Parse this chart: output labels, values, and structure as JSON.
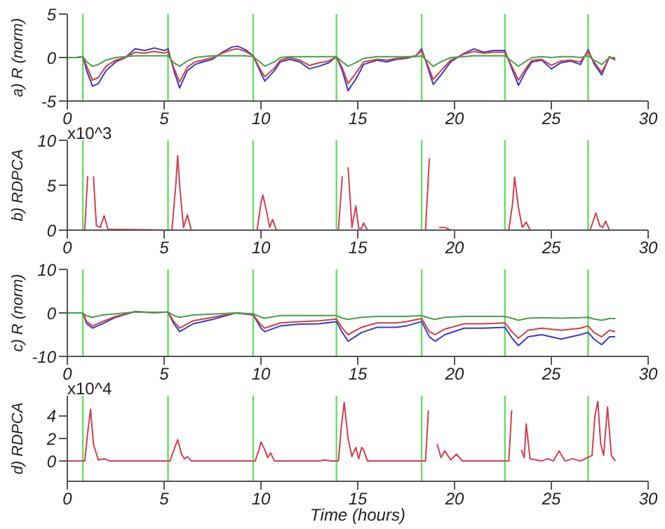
{
  "chart_data": [
    {
      "type": "line",
      "ylabel": "a) R (norm)",
      "xlim": [
        0,
        30
      ],
      "xticks": [
        0,
        5,
        10,
        15,
        20,
        25,
        30
      ],
      "ylim": [
        -5,
        5
      ],
      "yticks": [
        -5,
        0,
        5
      ],
      "x": [
        0,
        0.5,
        0.8,
        1.0,
        1.3,
        1.6,
        2.0,
        2.5,
        3,
        3.5,
        4,
        4.5,
        5,
        5.2,
        5.5,
        5.8,
        6.2,
        6.6,
        7,
        7.5,
        8,
        8.5,
        8.8,
        9.2,
        9.6,
        10,
        10.2,
        10.7,
        11,
        11.5,
        12,
        12.5,
        13,
        13.5,
        13.9,
        14.2,
        14.5,
        14.9,
        15.3,
        16,
        16.5,
        17,
        17.5,
        18,
        18.3,
        18.6,
        18.9,
        19.3,
        19.8,
        20.5,
        21,
        21.5,
        22,
        22.6,
        23,
        23.3,
        23.7,
        24,
        24.5,
        25,
        25.5,
        26,
        26.5,
        26.9,
        27.2,
        27.6,
        28,
        28.3
      ],
      "series": [
        {
          "color": "#3a3ad0",
          "values": [
            0,
            0,
            0.1,
            -1.5,
            -3.3,
            -3.0,
            -1.5,
            -0.5,
            0,
            1,
            0.8,
            1.1,
            0.8,
            1.0,
            -1.5,
            -3.5,
            -1.5,
            -0.8,
            -0.5,
            -0.2,
            0.6,
            1.2,
            1.3,
            0.9,
            0.2,
            -1.8,
            -2.7,
            -1.5,
            -0.5,
            -0.2,
            -0.5,
            -1.3,
            -1.0,
            -0.6,
            0.1,
            -1.5,
            -3.8,
            -2.5,
            -0.8,
            -0.3,
            -0.5,
            -0.2,
            -0.1,
            0.2,
            1.0,
            -1.0,
            -3.1,
            -2.0,
            -0.5,
            0.5,
            1.0,
            0.6,
            0.8,
            0.8,
            -1.5,
            -3.2,
            -1.5,
            -0.5,
            -0.3,
            -1.3,
            -0.6,
            -0.4,
            -0.8,
            0.9,
            -0.7,
            -2.0,
            0.1,
            -0.3
          ]
        },
        {
          "color": "#d04040",
          "values": [
            0,
            0,
            0.1,
            -1.0,
            -2.6,
            -2.3,
            -1.0,
            -0.3,
            0,
            0.6,
            0.5,
            0.7,
            0.5,
            0.7,
            -1.2,
            -2.8,
            -1.1,
            -0.5,
            -0.3,
            0,
            0.5,
            0.9,
            1.0,
            0.7,
            0.2,
            -1.5,
            -2.2,
            -1.2,
            -0.3,
            0,
            -0.3,
            -0.9,
            -0.6,
            -0.4,
            0.1,
            -1.2,
            -3.0,
            -1.8,
            -0.5,
            -0.2,
            -0.3,
            -0.1,
            0,
            0.2,
            0.8,
            -0.8,
            -2.5,
            -1.5,
            -0.3,
            0.4,
            0.7,
            0.5,
            0.6,
            0.6,
            -1.2,
            -2.6,
            -1.2,
            -0.3,
            -0.2,
            -0.9,
            -0.4,
            -0.3,
            -0.5,
            0.7,
            -0.5,
            -1.7,
            0,
            -0.2
          ]
        },
        {
          "color": "#48a048",
          "values": [
            0,
            0,
            0.1,
            -0.5,
            -1.0,
            -0.8,
            -0.3,
            0,
            0.1,
            0.2,
            0.2,
            0.2,
            0.2,
            0.2,
            -0.6,
            -1.0,
            -0.4,
            0,
            0.1,
            0.2,
            0.2,
            0.2,
            0.2,
            0.2,
            0.1,
            -0.6,
            -1.0,
            -0.5,
            0,
            0.1,
            0.1,
            0.1,
            0.1,
            0.1,
            0.1,
            -0.5,
            -1.0,
            -0.6,
            -0.1,
            0.1,
            0.1,
            0.1,
            0.1,
            0.1,
            0.2,
            -0.4,
            -1.0,
            -0.5,
            0,
            0.1,
            0.2,
            0.2,
            0.2,
            0.2,
            -0.5,
            -1.0,
            -0.4,
            0,
            0.1,
            0,
            0.1,
            0.1,
            0,
            0.2,
            -0.3,
            -0.8,
            0,
            0
          ]
        }
      ],
      "ref_lines": [
        {
          "axis": "x",
          "value": 0.8,
          "color": "#66dd66"
        },
        {
          "axis": "x",
          "value": 5.2,
          "color": "#66dd66"
        },
        {
          "axis": "x",
          "value": 9.6,
          "color": "#66dd66"
        },
        {
          "axis": "x",
          "value": 13.9,
          "color": "#66dd66"
        },
        {
          "axis": "x",
          "value": 18.3,
          "color": "#66dd66"
        },
        {
          "axis": "x",
          "value": 22.6,
          "color": "#66dd66"
        },
        {
          "axis": "x",
          "value": 26.9,
          "color": "#66dd66"
        }
      ]
    },
    {
      "type": "line",
      "ylabel": "b) RDPCA",
      "annotations": [
        "x10^3"
      ],
      "xlim": [
        0,
        30
      ],
      "xticks": [
        0,
        5,
        10,
        15,
        20,
        25,
        30
      ],
      "ylim": [
        0,
        10
      ],
      "yticks": [
        0,
        5,
        10
      ],
      "x": [
        0,
        0.9,
        1.05,
        1.2,
        1.35,
        1.5,
        1.7,
        1.9,
        2.1,
        5.4,
        5.6,
        5.7,
        5.8,
        6.0,
        6.2,
        6.4,
        9.8,
        10.0,
        10.1,
        10.3,
        10.45,
        10.6,
        10.8,
        14.0,
        14.2,
        14.3,
        14.5,
        14.7,
        14.9,
        15.05,
        15.2,
        15.3,
        15.5,
        18.5,
        18.7,
        18.8,
        19.0,
        19.2,
        19.5,
        19.8,
        22.8,
        23.0,
        23.1,
        23.3,
        23.5,
        23.7,
        23.9,
        27.0,
        27.3,
        27.5,
        27.65,
        27.8,
        28.0,
        28.3
      ],
      "series": [
        {
          "color": "#d04050",
          "values": [
            0,
            0,
            6,
            null,
            6,
            0.5,
            0.3,
            1.6,
            0.1,
            0,
            5,
            8.3,
            5,
            0.3,
            1.7,
            0,
            0,
            3,
            3.9,
            2,
            0.3,
            1.2,
            0,
            0,
            6,
            null,
            7,
            0.3,
            2.7,
            0.2,
            0.2,
            0.8,
            0,
            0,
            8,
            null,
            null,
            0.3,
            0.3,
            0,
            0,
            3,
            5.9,
            2.5,
            0.3,
            0.9,
            0,
            0,
            1.9,
            0.5,
            0.3,
            1.0,
            0,
            0
          ]
        }
      ],
      "ref_lines": [
        {
          "axis": "x",
          "value": 0.8,
          "color": "#66dd66"
        },
        {
          "axis": "x",
          "value": 5.2,
          "color": "#66dd66"
        },
        {
          "axis": "x",
          "value": 9.6,
          "color": "#66dd66"
        },
        {
          "axis": "x",
          "value": 13.9,
          "color": "#66dd66"
        },
        {
          "axis": "x",
          "value": 18.3,
          "color": "#66dd66"
        },
        {
          "axis": "x",
          "value": 22.6,
          "color": "#66dd66"
        },
        {
          "axis": "x",
          "value": 26.9,
          "color": "#66dd66"
        }
      ]
    },
    {
      "type": "line",
      "ylabel": "c) R (norm)",
      "xlim": [
        0,
        30
      ],
      "xticks": [
        0,
        5,
        10,
        15,
        20,
        25,
        30
      ],
      "ylim": [
        -10,
        10
      ],
      "yticks": [
        -10,
        0,
        10
      ],
      "x": [
        0,
        0.5,
        0.8,
        1.0,
        1.3,
        1.8,
        2.5,
        3.5,
        4.5,
        5.2,
        5.5,
        5.8,
        6.5,
        7.5,
        8.7,
        9.6,
        10.0,
        10.2,
        11,
        12,
        13,
        13.9,
        14.2,
        14.5,
        15.2,
        16,
        17,
        17.5,
        18.3,
        18.7,
        19.0,
        19.5,
        20.5,
        21.5,
        22.6,
        23.0,
        23.3,
        23.8,
        24.5,
        25.5,
        26.5,
        26.9,
        27.2,
        27.6,
        28,
        28.3
      ],
      "series": [
        {
          "color": "#3a3ad0",
          "values": [
            0,
            0,
            0,
            -2.5,
            -3.5,
            -2.5,
            -1.0,
            0.3,
            0.1,
            0.2,
            -2.5,
            -4.3,
            -2.5,
            -1.5,
            0,
            -0.5,
            -3.5,
            -4.3,
            -3.0,
            -2.6,
            -2.5,
            -2.0,
            -4.5,
            -6.5,
            -4.5,
            -3.3,
            -3.3,
            -3.0,
            -2.0,
            -5.5,
            -6.5,
            -5.0,
            -3.5,
            -3.5,
            -3.3,
            -6.0,
            -7.5,
            -5.5,
            -5.0,
            -6.0,
            -5.0,
            -4.5,
            -6.0,
            -7.3,
            -5.5,
            -5.5
          ]
        },
        {
          "color": "#d04040",
          "values": [
            0,
            0,
            0,
            -2.0,
            -3.0,
            -2.0,
            -0.8,
            0.3,
            0.1,
            0.2,
            -2.0,
            -3.5,
            -1.8,
            -1.0,
            0,
            -0.4,
            -2.8,
            -3.5,
            -2.3,
            -2.0,
            -1.8,
            -1.4,
            -3.5,
            -5.0,
            -3.3,
            -2.3,
            -2.3,
            -2.0,
            -1.3,
            -4.3,
            -5.0,
            -3.7,
            -2.5,
            -2.5,
            -2.3,
            -4.5,
            -5.8,
            -4.0,
            -3.5,
            -4.0,
            -3.5,
            -3.0,
            -4.5,
            -5.5,
            -4.0,
            -4.3
          ]
        },
        {
          "color": "#48a048",
          "values": [
            0,
            0,
            0,
            -0.7,
            -1.0,
            -0.5,
            -0.2,
            0.2,
            0.1,
            0.2,
            -0.6,
            -1.0,
            -0.5,
            -0.3,
            0,
            -0.2,
            -1.0,
            -1.2,
            -0.6,
            -0.6,
            -0.6,
            -0.6,
            -1.2,
            -1.5,
            -1.0,
            -0.8,
            -0.8,
            -0.8,
            -0.6,
            -1.2,
            -1.5,
            -1.0,
            -0.8,
            -0.8,
            -0.8,
            -1.3,
            -1.7,
            -1.2,
            -1.1,
            -1.2,
            -1.1,
            -1.0,
            -1.4,
            -1.7,
            -1.3,
            -1.3
          ]
        }
      ],
      "ref_lines": [
        {
          "axis": "x",
          "value": 0.8,
          "color": "#66dd66"
        },
        {
          "axis": "x",
          "value": 5.2,
          "color": "#66dd66"
        },
        {
          "axis": "x",
          "value": 9.6,
          "color": "#66dd66"
        },
        {
          "axis": "x",
          "value": 13.9,
          "color": "#66dd66"
        },
        {
          "axis": "x",
          "value": 18.3,
          "color": "#66dd66"
        },
        {
          "axis": "x",
          "value": 22.6,
          "color": "#66dd66"
        },
        {
          "axis": "x",
          "value": 26.9,
          "color": "#66dd66"
        }
      ]
    },
    {
      "type": "line",
      "ylabel": "d) RDPCA",
      "xlabel": "Time (hours)",
      "annotations": [
        "x10^4"
      ],
      "xlim": [
        0,
        30
      ],
      "xticks": [
        0,
        5,
        10,
        15,
        20,
        25,
        30
      ],
      "ylim": [
        -1.8,
        5.8
      ],
      "yticks": [
        0,
        2,
        4
      ],
      "x": [
        0,
        0.9,
        1.05,
        1.2,
        1.35,
        1.6,
        1.9,
        2.2,
        5.3,
        5.55,
        5.7,
        5.9,
        6.05,
        6.2,
        6.4,
        9.7,
        9.9,
        10.0,
        10.2,
        10.35,
        10.5,
        10.7,
        13.0,
        13.3,
        13.6,
        14.0,
        14.15,
        14.3,
        14.5,
        14.7,
        14.9,
        15.05,
        15.2,
        15.3,
        15.5,
        18.5,
        18.65,
        18.8,
        18.95,
        19.1,
        19.3,
        19.5,
        19.8,
        20.1,
        20.4,
        22.8,
        22.95,
        23.1,
        23.3,
        23.45,
        23.6,
        23.7,
        23.9,
        24.5,
        24.8,
        25.1,
        25.4,
        25.7,
        26.1,
        26.5,
        27.1,
        27.25,
        27.4,
        27.55,
        27.7,
        27.9,
        28.1,
        28.3
      ],
      "series": [
        {
          "color": "#d04050",
          "values": [
            0,
            0,
            2.5,
            4.6,
            1.5,
            0.1,
            0.2,
            0,
            0,
            1.2,
            1.9,
            0.6,
            0.2,
            0.4,
            0,
            0,
            1.0,
            1.7,
            1.0,
            0.3,
            0.7,
            0,
            0,
            0.1,
            0,
            0,
            3.0,
            5.2,
            2.0,
            0.4,
            1.2,
            0.2,
            1.2,
            1.0,
            0,
            0,
            4.5,
            null,
            null,
            1.5,
            0.3,
            0.9,
            0.1,
            0.6,
            0,
            0,
            4.5,
            null,
            null,
            1.0,
            0.3,
            3.3,
            0.2,
            0,
            0.2,
            0,
            0.9,
            0,
            0.2,
            0,
            0.5,
            4.0,
            5.3,
            1.5,
            0.5,
            4.8,
            0.5,
            0
          ]
        }
      ],
      "ref_lines": [
        {
          "axis": "x",
          "value": 0.8,
          "color": "#66dd66"
        },
        {
          "axis": "x",
          "value": 5.2,
          "color": "#66dd66"
        },
        {
          "axis": "x",
          "value": 9.6,
          "color": "#66dd66"
        },
        {
          "axis": "x",
          "value": 13.9,
          "color": "#66dd66"
        },
        {
          "axis": "x",
          "value": 18.3,
          "color": "#66dd66"
        },
        {
          "axis": "x",
          "value": 22.6,
          "color": "#66dd66"
        },
        {
          "axis": "x",
          "value": 26.9,
          "color": "#66dd66"
        }
      ]
    }
  ]
}
